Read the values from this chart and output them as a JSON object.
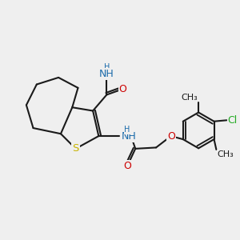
{
  "background_color": "#efefef",
  "bond_color": "#1a1a1a",
  "S_color": "#c8b400",
  "N_color": "#1a6aaa",
  "O_color": "#cc0000",
  "Cl_color": "#22aa22",
  "line_width": 1.5,
  "font_size": 8.5,
  "figsize": [
    3.0,
    3.0
  ],
  "dpi": 100,
  "xlim": [
    0,
    10
  ],
  "ylim": [
    0,
    10
  ]
}
